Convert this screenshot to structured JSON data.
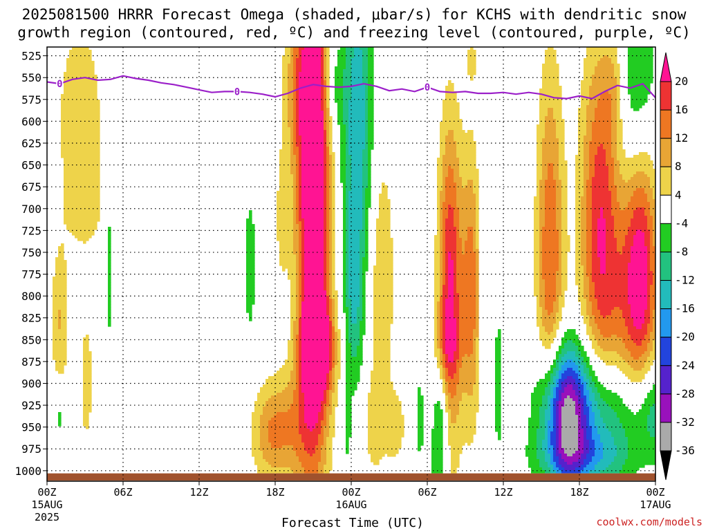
{
  "title": {
    "line1": "2025081500 HRRR Forecast Omega (shaded, μbar/s) for KCHS with dendritic snow",
    "line2": "growth region (contoured, red, ºC) and freezing level (contoured, purple, ºC)"
  },
  "credit": "coolwx.com/models",
  "colors": {
    "freezing_line": "#9b1fc9",
    "ground": "#a0522d",
    "grid": "#000000"
  },
  "chart_data": {
    "type": "heatmap",
    "xlabel": "Forecast Time (UTC)",
    "ylabel": "",
    "y_axis": "pressure (mb), inverted",
    "ylim": [
      1012,
      515
    ],
    "xlim_hours": [
      0,
      48
    ],
    "grid": true,
    "y_ticks": [
      525,
      550,
      575,
      600,
      625,
      650,
      675,
      700,
      725,
      750,
      775,
      800,
      825,
      850,
      875,
      900,
      925,
      950,
      975,
      1000
    ],
    "x_ticks": [
      {
        "hour": 0,
        "label": "00Z",
        "sub1": "15AUG",
        "sub2": "2025"
      },
      {
        "hour": 6,
        "label": "06Z",
        "sub1": "",
        "sub2": ""
      },
      {
        "hour": 12,
        "label": "12Z",
        "sub1": "",
        "sub2": ""
      },
      {
        "hour": 18,
        "label": "18Z",
        "sub1": "",
        "sub2": ""
      },
      {
        "hour": 24,
        "label": "00Z",
        "sub1": "16AUG",
        "sub2": ""
      },
      {
        "hour": 30,
        "label": "06Z",
        "sub1": "",
        "sub2": ""
      },
      {
        "hour": 36,
        "label": "12Z",
        "sub1": "",
        "sub2": ""
      },
      {
        "hour": 42,
        "label": "18Z",
        "sub1": "",
        "sub2": ""
      },
      {
        "hour": 48,
        "label": "00Z",
        "sub1": "17AUG",
        "sub2": ""
      }
    ],
    "colorbar": {
      "labels": [
        20,
        16,
        12,
        8,
        4,
        -4,
        -8,
        -12,
        -16,
        -20,
        -24,
        -28,
        -32,
        -36
      ],
      "bins": [
        {
          "lo": 20,
          "hi": null,
          "color": "#ff1493"
        },
        {
          "lo": 16,
          "hi": 20,
          "color": "#ee3333"
        },
        {
          "lo": 12,
          "hi": 16,
          "color": "#ee7722"
        },
        {
          "lo": 8,
          "hi": 12,
          "color": "#e8a535"
        },
        {
          "lo": 4,
          "hi": 8,
          "color": "#eed34a"
        },
        {
          "lo": -4,
          "hi": 4,
          "color": "#ffffff"
        },
        {
          "lo": -8,
          "hi": -4,
          "color": "#22cc22"
        },
        {
          "lo": -12,
          "hi": -8,
          "color": "#22c27f"
        },
        {
          "lo": -16,
          "hi": -12,
          "color": "#22bbbb"
        },
        {
          "lo": -20,
          "hi": -16,
          "color": "#2299ee"
        },
        {
          "lo": -24,
          "hi": -20,
          "color": "#2244dd"
        },
        {
          "lo": -28,
          "hi": -24,
          "color": "#5522cc"
        },
        {
          "lo": -32,
          "hi": -28,
          "color": "#9911bb"
        },
        {
          "lo": -36,
          "hi": -32,
          "color": "#aaaaaa"
        },
        {
          "lo": null,
          "hi": -36,
          "color": "#000000"
        }
      ]
    },
    "freezing_level": {
      "value_label": "0",
      "hours": [
        0,
        1,
        2,
        3,
        4,
        5,
        6,
        7,
        8,
        9,
        10,
        11,
        12,
        13,
        14,
        15,
        16,
        17,
        18,
        19,
        20,
        21,
        22,
        23,
        24,
        25,
        26,
        27,
        28,
        29,
        30,
        31,
        32,
        33,
        34,
        35,
        36,
        37,
        38,
        39,
        40,
        41,
        42,
        43,
        44,
        45,
        46,
        47,
        48
      ],
      "pressure": [
        555,
        557,
        552,
        550,
        553,
        552,
        548,
        551,
        553,
        556,
        558,
        561,
        564,
        567,
        566,
        566,
        567,
        569,
        572,
        568,
        562,
        558,
        560,
        561,
        560,
        557,
        560,
        565,
        563,
        566,
        561,
        566,
        567,
        566,
        568,
        568,
        567,
        569,
        567,
        569,
        573,
        574,
        571,
        574,
        566,
        559,
        562,
        557,
        573
      ],
      "label_hours": [
        1,
        15,
        30
      ]
    },
    "omega_features": [
      {
        "name": "main ascent column",
        "hour_range": [
          18,
          22
        ],
        "p_range": [
          520,
          900
        ],
        "peak": 22
      },
      {
        "name": "late-period low-level ascent",
        "hour_range": [
          31,
          34
        ],
        "p_range": [
          680,
          870
        ],
        "peak": 18
      },
      {
        "name": "end-period ascent",
        "hour_range": [
          44,
          48
        ],
        "p_range": [
          640,
          820
        ],
        "peak": 20
      },
      {
        "name": "descent column",
        "hour_range": [
          23,
          25
        ],
        "p_range": [
          520,
          760
        ],
        "peak": -14
      },
      {
        "name": "low-level descent maximum",
        "hour_range": [
          39,
          44
        ],
        "p_range": [
          900,
          980
        ],
        "peak": -30
      },
      {
        "name": "upper-level descent",
        "hour_range": [
          45,
          48
        ],
        "p_range": [
          520,
          600
        ],
        "peak": -10
      }
    ]
  }
}
